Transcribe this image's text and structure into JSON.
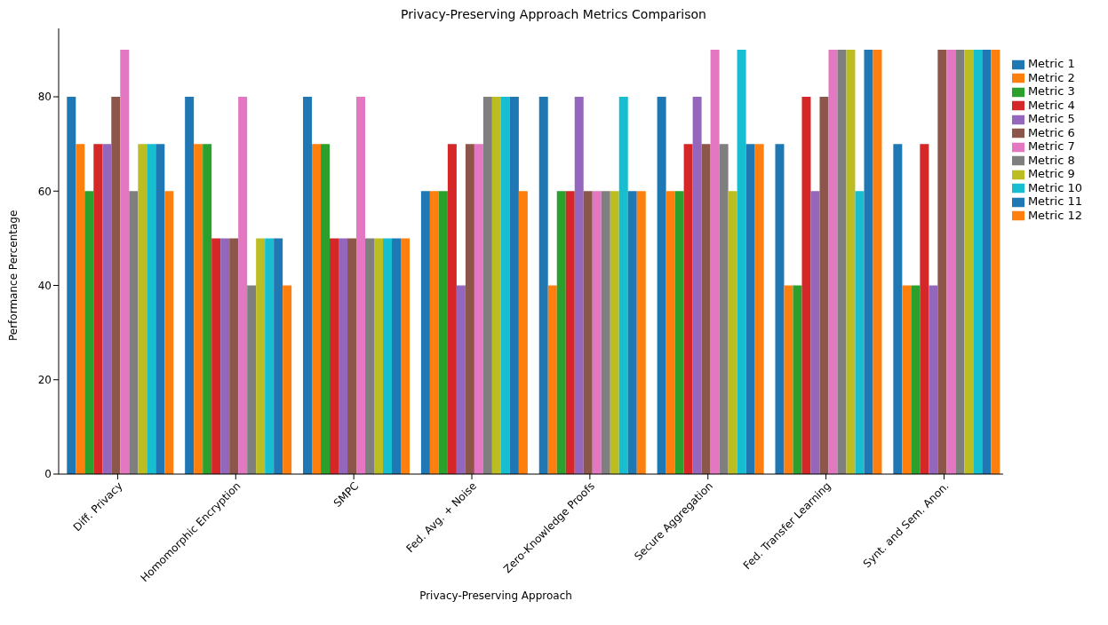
{
  "chart_data": {
    "type": "bar",
    "title": "Privacy-Preserving Approach Metrics Comparison",
    "xlabel": "Privacy-Preserving Approach",
    "ylabel": "Performance Percentage",
    "categories": [
      "Diff. Privacy",
      "Homomorphic Encryption",
      "SMPC",
      "Fed. Avg. + Noise",
      "Zero-Knowledge Proofs",
      "Secure Aggregation",
      "Fed. Transfer Learning",
      "Synt. and Sem. Anon."
    ],
    "series": [
      {
        "name": "Metric 1",
        "color": "#1f77b4",
        "values": [
          80,
          80,
          80,
          60,
          80,
          80,
          70,
          70
        ]
      },
      {
        "name": "Metric 2",
        "color": "#ff7f0e",
        "values": [
          70,
          70,
          70,
          60,
          40,
          60,
          40,
          40
        ]
      },
      {
        "name": "Metric 3",
        "color": "#2ca02c",
        "values": [
          60,
          70,
          70,
          60,
          60,
          60,
          40,
          40
        ]
      },
      {
        "name": "Metric 4",
        "color": "#d62728",
        "values": [
          70,
          50,
          50,
          70,
          60,
          70,
          80,
          70
        ]
      },
      {
        "name": "Metric 5",
        "color": "#9467bd",
        "values": [
          70,
          50,
          50,
          40,
          80,
          80,
          60,
          40
        ]
      },
      {
        "name": "Metric 6",
        "color": "#8c564b",
        "values": [
          80,
          50,
          50,
          70,
          60,
          70,
          80,
          90
        ]
      },
      {
        "name": "Metric 7",
        "color": "#e377c2",
        "values": [
          90,
          80,
          80,
          70,
          60,
          90,
          90,
          90
        ]
      },
      {
        "name": "Metric 8",
        "color": "#7f7f7f",
        "values": [
          60,
          40,
          50,
          80,
          60,
          70,
          90,
          90
        ]
      },
      {
        "name": "Metric 9",
        "color": "#bcbd22",
        "values": [
          70,
          50,
          50,
          80,
          60,
          60,
          90,
          90
        ]
      },
      {
        "name": "Metric 10",
        "color": "#17becf",
        "values": [
          70,
          50,
          50,
          80,
          80,
          90,
          60,
          90
        ]
      },
      {
        "name": "Metric 11",
        "color": "#1f77b4",
        "values": [
          70,
          50,
          50,
          80,
          60,
          70,
          90,
          90
        ]
      },
      {
        "name": "Metric 12",
        "color": "#ff7f0e",
        "values": [
          60,
          40,
          50,
          60,
          60,
          70,
          90,
          90
        ]
      }
    ],
    "ylim": [
      0,
      94.5
    ],
    "yticks": [
      0,
      20,
      40,
      60,
      80
    ],
    "legend": "right"
  }
}
